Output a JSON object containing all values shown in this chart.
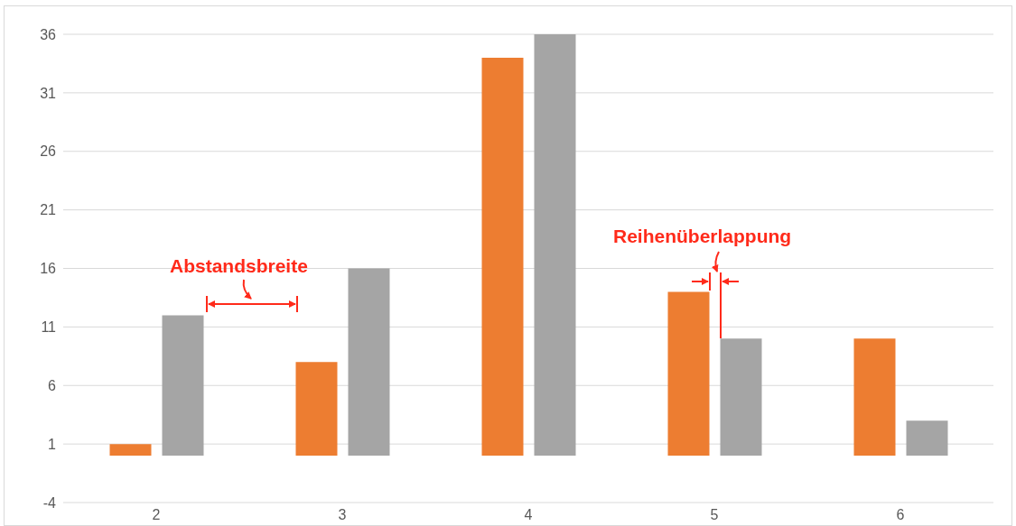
{
  "chart_data": {
    "type": "bar",
    "categories": [
      "2",
      "3",
      "4",
      "5",
      "6"
    ],
    "series": [
      {
        "color": "#ed7d31",
        "values": [
          1,
          8,
          34,
          14,
          10
        ]
      },
      {
        "color": "#a5a5a5",
        "values": [
          12,
          16,
          36,
          10,
          3
        ]
      }
    ],
    "ylim": [
      -4,
      36
    ],
    "yticks": [
      -4,
      1,
      6,
      11,
      16,
      21,
      26,
      31,
      36
    ],
    "grid": "y",
    "legend": false,
    "annotations": [
      "Abstandsbreite",
      "Reihenüberlappung"
    ]
  }
}
